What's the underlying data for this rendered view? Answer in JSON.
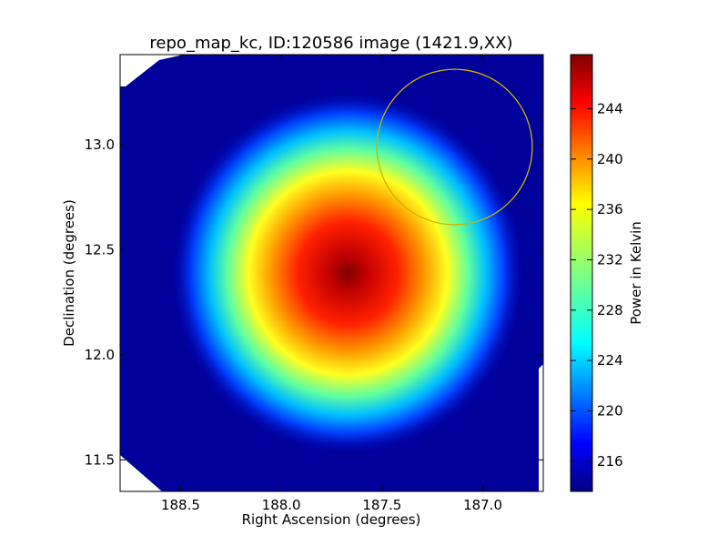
{
  "chart_data": {
    "type": "heatmap",
    "title": "repo_map_kc, ID:120586 image (1421.9,XX)",
    "xlabel": "Right Ascension (degrees)",
    "ylabel": "Declination (degrees)",
    "xlim": [
      188.8,
      186.7
    ],
    "ylim": [
      11.35,
      13.43
    ],
    "x_ticks": [
      188.5,
      188.0,
      187.5,
      187.0
    ],
    "x_tick_labels": [
      "188.5",
      "188.0",
      "187.5",
      "187.0"
    ],
    "y_ticks": [
      11.5,
      12.0,
      12.5,
      13.0
    ],
    "y_tick_labels": [
      "11.5",
      "12.0",
      "12.5",
      "13.0"
    ],
    "colorbar": {
      "label": "Power in Kelvin",
      "range": [
        213.6,
        248.3
      ],
      "ticks": [
        216,
        220,
        224,
        228,
        232,
        236,
        240,
        244
      ],
      "tick_labels": [
        "216",
        "220",
        "224",
        "228",
        "232",
        "236",
        "240",
        "244"
      ],
      "colormap": "jet"
    },
    "source_peak": {
      "ra": 187.67,
      "dec": 12.39,
      "value": 248.3
    },
    "background_value": 214.5,
    "circle": {
      "center_ra": 187.14,
      "center_dec": 12.99,
      "radius_deg": 0.37,
      "color": "#c8b400"
    },
    "grid": false,
    "legend": "none"
  }
}
